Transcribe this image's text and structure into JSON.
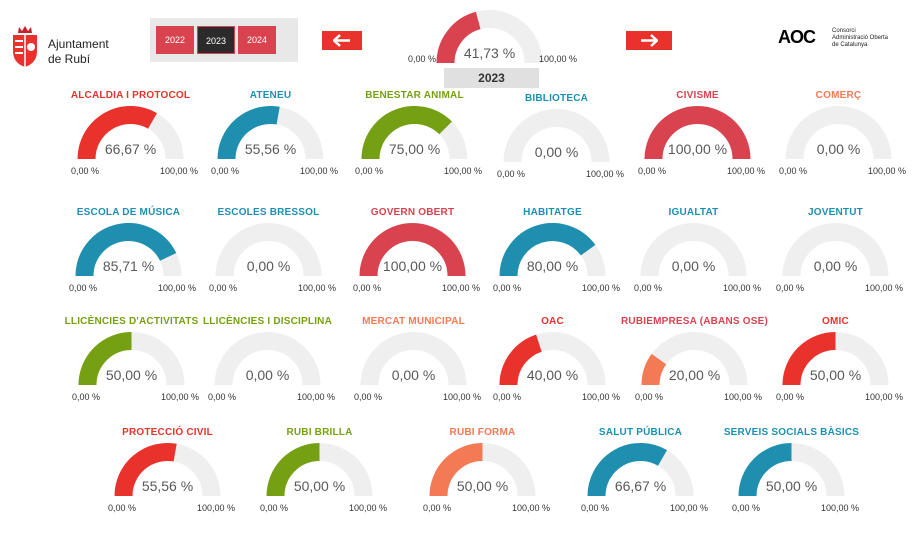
{
  "header": {
    "logo_text_line1": "Ajuntament",
    "logo_text_line2": "de Rubí",
    "years": [
      "2022",
      "2023",
      "2024"
    ],
    "active_year": "2023",
    "prev_label": "🡄",
    "next_label": "🡆",
    "aoc_mark": "AOC",
    "aoc_line1": "Consorci",
    "aoc_line2": "Administració Oberta",
    "aoc_line3": "de Catalunya"
  },
  "summary": {
    "value": "41,73 %",
    "fraction": 0.4173,
    "min": "0,00 %",
    "max": "100,00 %",
    "year": "2023",
    "color": "#d9434f"
  },
  "gauges": [
    {
      "title": "ALCALDIA I PROTOCOL",
      "value": "66,67 %",
      "fraction": 0.6667,
      "color": "#e8322b",
      "title_color": "#e8322b",
      "min": "0,00 %",
      "max": "100,00 %"
    },
    {
      "title": "ATENEU",
      "value": "55,56 %",
      "fraction": 0.5556,
      "color": "#1f8fb0",
      "title_color": "#1f8fb0",
      "min": "0,00 %",
      "max": "100,00 %"
    },
    {
      "title": "BENESTAR ANIMAL",
      "value": "75,00 %",
      "fraction": 0.75,
      "color": "#76a013",
      "title_color": "#76a013",
      "min": "0,00 %",
      "max": "100,00 %"
    },
    {
      "title": "BIBLIOTECA",
      "value": "0,00 %",
      "fraction": 0,
      "color": "#1f8fb0",
      "title_color": "#1f8fb0",
      "min": "0,00 %",
      "max": "100,00 %"
    },
    {
      "title": "CIVISME",
      "value": "100,00 %",
      "fraction": 1.0,
      "color": "#d9434f",
      "title_color": "#d9434f",
      "min": "0,00 %",
      "max": "100,00 %"
    },
    {
      "title": "COMERÇ",
      "value": "0,00 %",
      "fraction": 0,
      "color": "#f47a55",
      "title_color": "#f47a55",
      "min": "0,00 %",
      "max": "100,00 %"
    },
    {
      "title": "ESCOLA DE MÚSICA",
      "value": "85,71 %",
      "fraction": 0.8571,
      "color": "#1f8fb0",
      "title_color": "#1f8fb0",
      "min": "0,00 %",
      "max": "100,00 %"
    },
    {
      "title": "ESCOLES BRESSOL",
      "value": "0,00 %",
      "fraction": 0,
      "color": "#1f8fb0",
      "title_color": "#1f8fb0",
      "min": "0,00 %",
      "max": "100,00 %"
    },
    {
      "title": "GOVERN OBERT",
      "value": "100,00 %",
      "fraction": 1.0,
      "color": "#d9434f",
      "title_color": "#d9434f",
      "min": "0,00 %",
      "max": "100,00 %"
    },
    {
      "title": "HABITATGE",
      "value": "80,00 %",
      "fraction": 0.8,
      "color": "#1f8fb0",
      "title_color": "#1f8fb0",
      "min": "0,00 %",
      "max": "100,00 %"
    },
    {
      "title": "IGUALTAT",
      "value": "0,00 %",
      "fraction": 0,
      "color": "#1f8fb0",
      "title_color": "#1f8fb0",
      "min": "0,00 %",
      "max": "100,00 %"
    },
    {
      "title": "JOVENTUT",
      "value": "0,00 %",
      "fraction": 0,
      "color": "#1f8fb0",
      "title_color": "#1f8fb0",
      "min": "0,00 %",
      "max": "100,00 %"
    },
    {
      "title": "LLICÈNCIES D'ACTIVITATS",
      "value": "50,00 %",
      "fraction": 0.5,
      "color": "#76a013",
      "title_color": "#76a013",
      "min": "0,00 %",
      "max": "100,00 %"
    },
    {
      "title": "LLICÈNCIES I DISCIPLINA",
      "value": "0,00 %",
      "fraction": 0,
      "color": "#76a013",
      "title_color": "#76a013",
      "min": "0,00 %",
      "max": "100,00 %"
    },
    {
      "title": "MERCAT MUNICIPAL",
      "value": "0,00 %",
      "fraction": 0,
      "color": "#f47a55",
      "title_color": "#f47a55",
      "min": "0,00 %",
      "max": "100,00 %"
    },
    {
      "title": "OAC",
      "value": "40,00 %",
      "fraction": 0.4,
      "color": "#e8322b",
      "title_color": "#e8322b",
      "min": "0,00 %",
      "max": "100,00 %"
    },
    {
      "title": "RUBIEMPRESA (ABANS OSE)",
      "value": "20,00 %",
      "fraction": 0.2,
      "color": "#f47a55",
      "title_color": "#d9434f",
      "min": "0,00 %",
      "max": "100,00 %"
    },
    {
      "title": "OMIC",
      "value": "50,00 %",
      "fraction": 0.5,
      "color": "#e8322b",
      "title_color": "#e8322b",
      "min": "0,00 %",
      "max": "100,00 %"
    },
    {
      "title": "PROTECCIÓ CIVIL",
      "value": "55,56 %",
      "fraction": 0.5556,
      "color": "#e8322b",
      "title_color": "#e8322b",
      "min": "0,00 %",
      "max": "100,00 %"
    },
    {
      "title": "RUBI BRILLA",
      "value": "50,00 %",
      "fraction": 0.5,
      "color": "#76a013",
      "title_color": "#76a013",
      "min": "0,00 %",
      "max": "100,00 %"
    },
    {
      "title": "RUBI FORMA",
      "value": "50,00 %",
      "fraction": 0.5,
      "color": "#f47a55",
      "title_color": "#f47a55",
      "min": "0,00 %",
      "max": "100,00 %"
    },
    {
      "title": "SALUT PÚBLICA",
      "value": "66,67 %",
      "fraction": 0.6667,
      "color": "#1f8fb0",
      "title_color": "#1f8fb0",
      "min": "0,00 %",
      "max": "100,00 %"
    },
    {
      "title": "SERVEIS SOCIALS BÀSICS",
      "value": "50,00 %",
      "fraction": 0.5,
      "color": "#1f8fb0",
      "title_color": "#1f8fb0",
      "min": "0,00 %",
      "max": "100,00 %"
    }
  ]
}
